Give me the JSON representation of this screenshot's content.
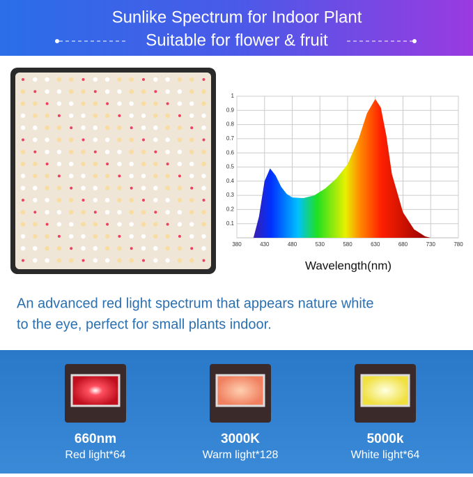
{
  "header": {
    "title": "Sunlike Spectrum for Indoor Plant",
    "subtitle": "Suitable for flower & fruit"
  },
  "chart_data": {
    "type": "area",
    "xlabel": "Wavelength(nm)",
    "x": [
      410,
      420,
      430,
      440,
      450,
      460,
      470,
      480,
      500,
      520,
      540,
      560,
      580,
      600,
      615,
      630,
      640,
      650,
      660,
      680,
      700,
      720,
      730
    ],
    "values": [
      0,
      0.15,
      0.4,
      0.49,
      0.44,
      0.36,
      0.31,
      0.285,
      0.28,
      0.3,
      0.35,
      0.42,
      0.52,
      0.7,
      0.88,
      0.98,
      0.92,
      0.72,
      0.45,
      0.18,
      0.06,
      0.01,
      0
    ],
    "xlim": [
      380,
      780
    ],
    "xticks": [
      380,
      430,
      480,
      530,
      580,
      630,
      680,
      730,
      780
    ],
    "ylim": [
      0,
      1
    ],
    "yticks": [
      0.1,
      0.2,
      0.3,
      0.4,
      0.5,
      0.6,
      0.7,
      0.8,
      0.9,
      1
    ],
    "grid": true
  },
  "description": {
    "line1": "An advanced red light spectrum that appears nature white",
    "line2": "to the eye,  perfect for small plants indoor."
  },
  "leds": [
    {
      "name": "660nm",
      "label": "Red light*64"
    },
    {
      "name": "3000K",
      "label": "Warm light*128"
    },
    {
      "name": "5000k",
      "label": "White light*64"
    }
  ]
}
